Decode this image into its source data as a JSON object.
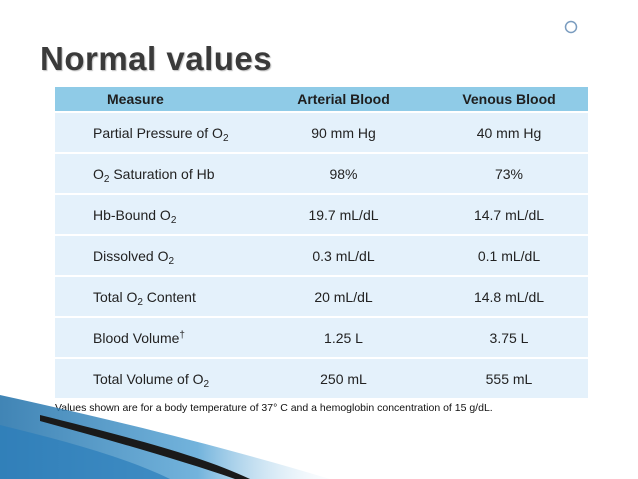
{
  "slide": {
    "title": "Normal values"
  },
  "table": {
    "headers": [
      "Measure",
      "Arterial Blood",
      "Venous Blood"
    ],
    "rows": [
      {
        "measure_pre": "Partial Pressure of O",
        "measure_sub": "2",
        "measure_post": "",
        "measure_sup": "",
        "arterial": "90 mm Hg",
        "venous": "40 mm Hg"
      },
      {
        "measure_pre": "O",
        "measure_sub": "2",
        "measure_post": " Saturation of Hb",
        "measure_sup": "",
        "arterial": "98%",
        "venous": "73%"
      },
      {
        "measure_pre": "Hb-Bound O",
        "measure_sub": "2",
        "measure_post": "",
        "measure_sup": "",
        "arterial": "19.7 mL/dL",
        "venous": "14.7 mL/dL"
      },
      {
        "measure_pre": "Dissolved O",
        "measure_sub": "2",
        "measure_post": "",
        "measure_sup": "",
        "arterial": "0.3 mL/dL",
        "venous": "0.1 mL/dL"
      },
      {
        "measure_pre": "Total O",
        "measure_sub": "2",
        "measure_post": " Content",
        "measure_sup": "",
        "arterial": "20 mL/dL",
        "venous": "14.8 mL/dL"
      },
      {
        "measure_pre": "Blood Volume",
        "measure_sub": "",
        "measure_post": "",
        "measure_sup": "†",
        "arterial": "1.25 L",
        "venous": "3.75 L"
      },
      {
        "measure_pre": "Total Volume of O",
        "measure_sub": "2",
        "measure_post": "",
        "measure_sup": "",
        "arterial": "250 mL",
        "venous": "555 mL"
      }
    ],
    "footnote": "Values shown are for a body temperature of 37° C and a hemoglobin concentration of 15 g/dL."
  },
  "colors": {
    "header_bg": "#8fcbe7",
    "row_bg": "#e4f1fb",
    "swoosh_blue": "#1f6fa8",
    "swoosh_dark": "#1a1a1a"
  },
  "icons": [
    "circle-outline-icon"
  ]
}
